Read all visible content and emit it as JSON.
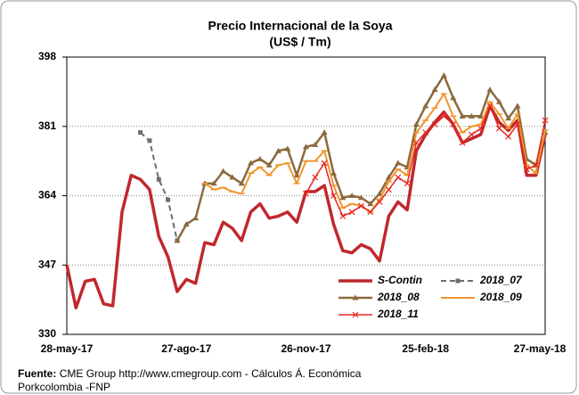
{
  "chart_data": {
    "type": "line",
    "title": "Precio Internacional de la Soya",
    "subtitle": "(US$ / Tm)",
    "categories": [
      "28-may-17",
      null,
      null,
      null,
      null,
      null,
      null,
      null,
      null,
      null,
      null,
      null,
      null,
      "27-ago-17",
      null,
      null,
      null,
      null,
      null,
      null,
      null,
      null,
      null,
      null,
      null,
      null,
      "26-nov-17",
      null,
      null,
      null,
      null,
      null,
      null,
      null,
      null,
      null,
      null,
      null,
      null,
      "25-feb-18",
      null,
      null,
      null,
      null,
      null,
      null,
      null,
      null,
      null,
      null,
      null,
      null,
      "27-may-18"
    ],
    "series": [
      {
        "name": "S-Contin",
        "color": "#c0282d",
        "width": 3.5,
        "marker": "none",
        "dashed": false,
        "values": [
          347,
          336.5,
          343,
          343.5,
          337.5,
          337,
          360,
          369,
          368,
          365.5,
          354,
          349,
          340.5,
          343.5,
          342.5,
          352.5,
          352,
          357.5,
          356,
          353,
          360,
          362,
          358.5,
          359,
          360,
          357.5,
          365,
          365,
          366.5,
          357,
          350.5,
          350,
          352,
          351,
          348,
          359,
          362.5,
          360.5,
          375,
          379,
          382,
          384.5,
          381.5,
          377,
          378,
          379,
          386,
          382,
          380,
          382.5,
          369,
          369,
          379
        ]
      },
      {
        "name": "2018_07",
        "color": "#6d6d6d",
        "width": 2,
        "marker": "square",
        "dashed": true,
        "values": [
          null,
          null,
          null,
          null,
          null,
          null,
          null,
          null,
          379.5,
          377.5,
          368,
          363,
          353,
          null,
          null,
          null,
          null,
          null,
          null,
          null,
          null,
          null,
          null,
          null,
          null,
          null,
          null,
          null,
          null,
          null,
          null,
          null,
          null,
          null,
          null,
          null,
          null,
          null,
          null,
          null,
          null,
          null,
          null,
          null,
          null,
          null,
          null,
          null,
          null,
          null,
          null,
          null,
          null
        ]
      },
      {
        "name": "2018_08",
        "color": "#8b6a3e",
        "width": 2.5,
        "marker": "triangle",
        "dashed": false,
        "values": [
          null,
          null,
          null,
          null,
          null,
          null,
          null,
          null,
          null,
          null,
          null,
          null,
          353,
          357,
          358.5,
          367,
          367,
          370,
          368.5,
          367,
          372,
          373,
          371.5,
          375,
          375.5,
          369,
          376,
          376.5,
          379.5,
          369.5,
          363.5,
          364,
          363.5,
          362,
          364.5,
          368.5,
          372,
          371,
          381.5,
          386,
          390,
          393.5,
          388,
          383.5,
          383.5,
          383.5,
          390,
          387,
          383,
          386,
          373,
          371.5,
          379.5
        ]
      },
      {
        "name": "2018_09",
        "color": "#f0962e",
        "width": 2,
        "marker": "dash",
        "dashed": false,
        "values": [
          null,
          null,
          null,
          null,
          null,
          null,
          null,
          null,
          null,
          null,
          null,
          null,
          null,
          null,
          null,
          367,
          365.5,
          366,
          365,
          364.5,
          369.5,
          371,
          369,
          371.5,
          372,
          367,
          372.5,
          372.5,
          375,
          366.5,
          361,
          362,
          361.5,
          360,
          363,
          367.5,
          370.5,
          369,
          379.5,
          382.5,
          385.5,
          389,
          383.5,
          379.5,
          381,
          381.5,
          387,
          384,
          380.5,
          384,
          371.5,
          369.5,
          380
        ]
      },
      {
        "name": "2018_11",
        "color": "#e8251f",
        "width": 1.5,
        "marker": "x",
        "dashed": false,
        "values": [
          null,
          null,
          null,
          null,
          null,
          null,
          null,
          null,
          null,
          null,
          null,
          null,
          null,
          null,
          null,
          null,
          null,
          null,
          null,
          null,
          null,
          null,
          null,
          null,
          null,
          null,
          364.5,
          368.5,
          372,
          364,
          359,
          360,
          361.5,
          360,
          362.5,
          365.5,
          368.5,
          367,
          377,
          379.5,
          381.5,
          383.5,
          381.5,
          377,
          379,
          380.5,
          386,
          380.5,
          378.5,
          381.5,
          370.5,
          371.5,
          382.5
        ]
      }
    ],
    "ylim": [
      330,
      398
    ],
    "yticks": [
      330,
      347,
      364,
      381,
      398
    ],
    "grid": true,
    "legend": "lower right",
    "source_label": "Fuente:",
    "source_text": "CME Group http://www.cmegroup.com - Cálculos Á. Económica",
    "source_text2": "Porkcolombia -FNP"
  }
}
